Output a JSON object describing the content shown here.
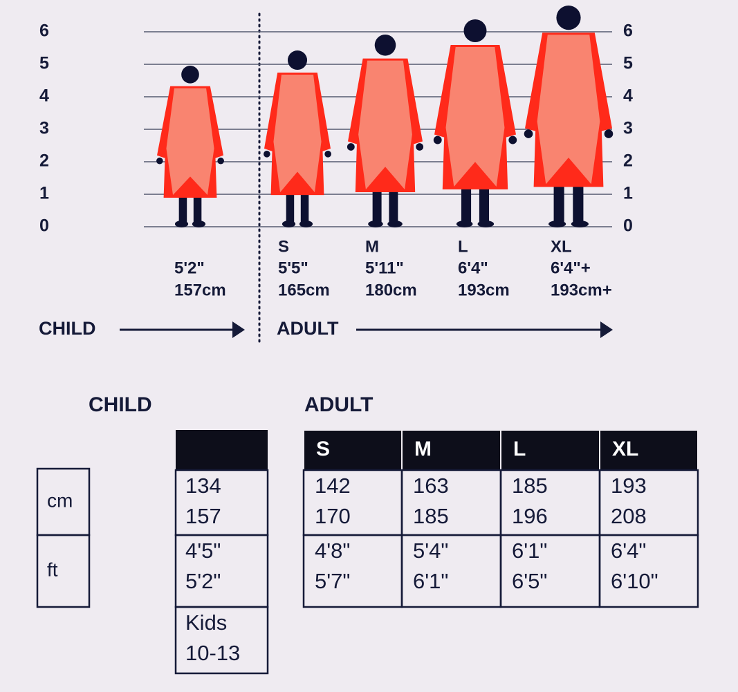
{
  "scale": {
    "ticks": [
      0,
      1,
      2,
      3,
      4,
      5,
      6
    ]
  },
  "figures": [
    {
      "height_ft": "5'2\"",
      "height_cm": "157cm"
    },
    {
      "size": "S",
      "height_ft": "5'5\"",
      "height_cm": "165cm"
    },
    {
      "size": "M",
      "height_ft": "5'11\"",
      "height_cm": "180cm"
    },
    {
      "size": "L",
      "height_ft": "6'4\"",
      "height_cm": "193cm"
    },
    {
      "size": "XL",
      "height_ft": "6'4\"+",
      "height_cm": "193cm+"
    }
  ],
  "sections": {
    "child": "CHILD",
    "adult": "ADULT"
  },
  "tables": {
    "child_title": "CHILD",
    "adult_title": "ADULT",
    "row_labels": [
      "cm",
      "ft"
    ],
    "child": {
      "rows": [
        [
          134,
          157
        ],
        [
          "4'5\"",
          "5'2\""
        ],
        [
          "Kids",
          "10-13"
        ]
      ]
    },
    "adult": {
      "columns": [
        "S",
        "M",
        "L",
        "XL"
      ],
      "rows": [
        [
          [
            142,
            170
          ],
          [
            163,
            185
          ],
          [
            185,
            196
          ],
          [
            193,
            208
          ]
        ],
        [
          [
            "4'8\"",
            "5'7\""
          ],
          [
            "5'4\"",
            "6'1\""
          ],
          [
            "6'1\"",
            "6'5\""
          ],
          [
            "6'4\"",
            "6'10\""
          ]
        ]
      ]
    }
  }
}
